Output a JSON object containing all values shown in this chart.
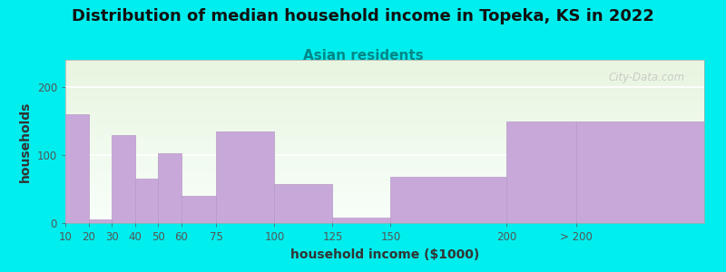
{
  "title": "Distribution of median household income in Topeka, KS in 2022",
  "subtitle": "Asian residents",
  "xlabel": "household income ($1000)",
  "ylabel": "households",
  "background_color": "#00EEEE",
  "plot_bg_top": "#e8f5e0",
  "plot_bg_bottom": "#f8fffa",
  "bar_color": "#C8A8D8",
  "bar_edge_color": "#B898C8",
  "bar_alpha": 1.0,
  "ylim": [
    0,
    240
  ],
  "yticks": [
    0,
    100,
    200
  ],
  "categories": [
    "10",
    "20",
    "30",
    "40",
    "50",
    "60",
    "75",
    "100",
    "125",
    "150",
    "200",
    "> 200"
  ],
  "heights": [
    160,
    5,
    130,
    65,
    103,
    40,
    135,
    57,
    8,
    68,
    150,
    150
  ],
  "lefts": [
    10,
    20,
    30,
    40,
    50,
    60,
    75,
    100,
    125,
    150,
    200,
    230
  ],
  "widths": [
    10,
    10,
    10,
    10,
    10,
    15,
    25,
    25,
    25,
    50,
    30,
    55
  ],
  "xlim": [
    10,
    285
  ],
  "watermark": "City-Data.com",
  "title_fontsize": 13,
  "subtitle_fontsize": 11,
  "subtitle_color": "#008888",
  "axis_label_fontsize": 10,
  "tick_fontsize": 8.5,
  "watermark_color": "#bbbbbb",
  "watermark_alpha": 0.7
}
